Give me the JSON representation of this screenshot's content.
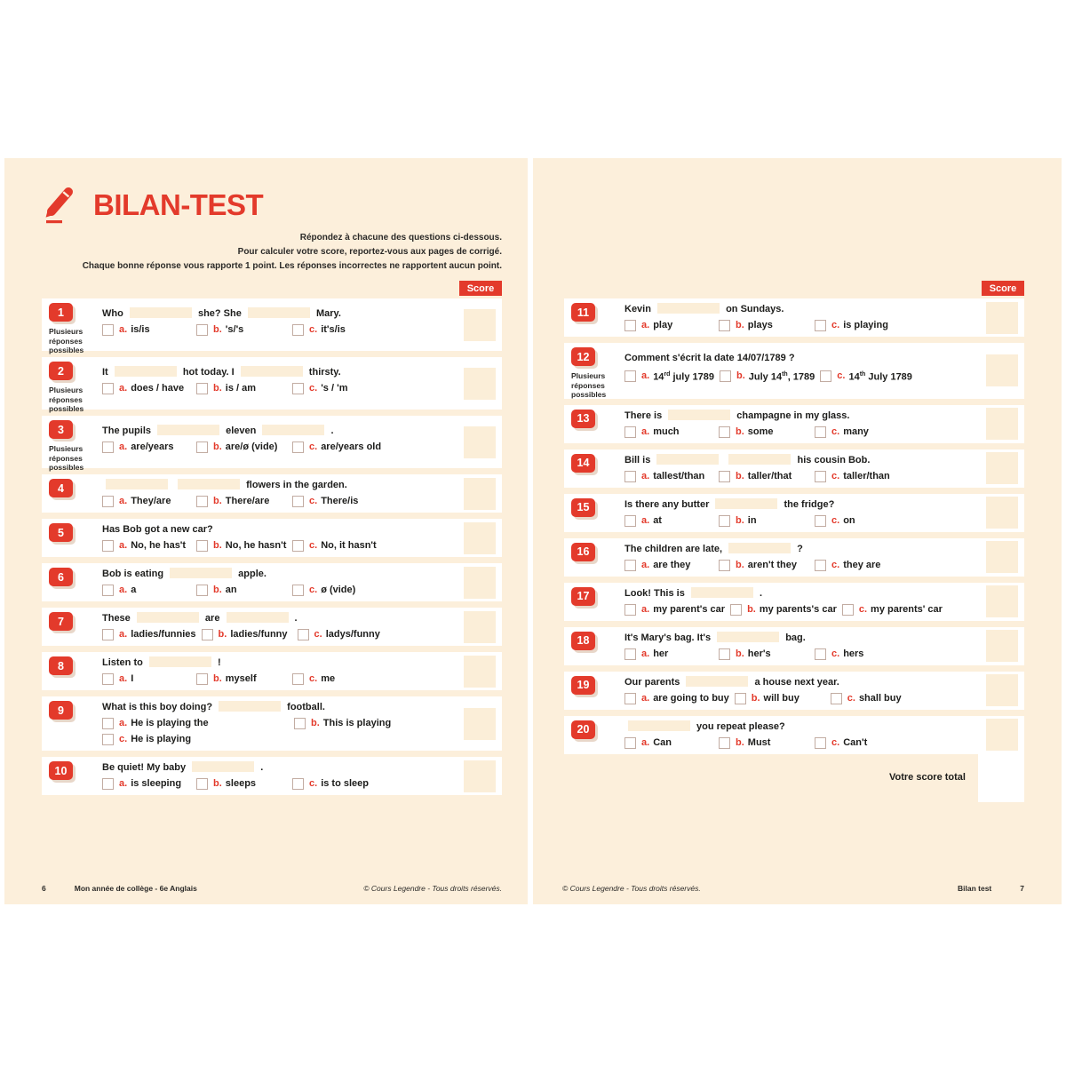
{
  "page_left": {
    "header": {
      "title": "BILAN-TEST"
    },
    "instructions": [
      "Répondez à chacune des questions ci-dessous.",
      "Pour calculer votre score, reportez-vous aux pages de corrigé.",
      "Chaque bonne réponse vous rapporte 1 point. Les réponses incorrectes ne rapportent aucun point."
    ],
    "score_label": "Score",
    "footer": {
      "page_number": "6",
      "book_title": "Mon année de collège - 6e Anglais",
      "copyright": "© Cours Legendre - Tous droits réservés."
    }
  },
  "page_right": {
    "score_label": "Score",
    "total_label": "Votre score total",
    "footer": {
      "copyright": "© Cours Legendre - Tous droits réservés.",
      "section": "Bilan test",
      "page_number": "7"
    }
  },
  "multi_answer_label": "Plusieurs réponses possibles",
  "colors": {
    "accent_red": "#e33a2b",
    "panel_cream": "#fcefdb",
    "score_box_cream": "#fbeed8",
    "row_white": "#ffffff",
    "text_dark": "#1d1d1b"
  },
  "questions_left": [
    {
      "number": "1",
      "multi": true,
      "prompt": "Who ___ she? She ___ Mary.",
      "options": [
        {
          "letter": "a.",
          "text": "is/is"
        },
        {
          "letter": "b.",
          "text": "'s/'s"
        },
        {
          "letter": "c.",
          "text": "it's/is"
        }
      ]
    },
    {
      "number": "2",
      "multi": true,
      "prompt": "It ___ hot today. I ___ thirsty.",
      "options": [
        {
          "letter": "a.",
          "text": "does / have"
        },
        {
          "letter": "b.",
          "text": "is / am"
        },
        {
          "letter": "c.",
          "text": "'s / 'm"
        }
      ]
    },
    {
      "number": "3",
      "multi": true,
      "prompt": "The pupils ___ eleven ___ .",
      "options": [
        {
          "letter": "a.",
          "text": "are/years"
        },
        {
          "letter": "b.",
          "text": "are/ø (vide)"
        },
        {
          "letter": "c.",
          "text": "are/years old"
        }
      ]
    },
    {
      "number": "4",
      "multi": false,
      "prompt": "___ ___ flowers in the garden.",
      "options": [
        {
          "letter": "a.",
          "text": "They/are"
        },
        {
          "letter": "b.",
          "text": "There/are"
        },
        {
          "letter": "c.",
          "text": "There/is"
        }
      ]
    },
    {
      "number": "5",
      "multi": false,
      "prompt": "Has Bob got a new car?",
      "options": [
        {
          "letter": "a.",
          "text": "No, he has't"
        },
        {
          "letter": "b.",
          "text": "No, he hasn't"
        },
        {
          "letter": "c.",
          "text": "No, it hasn't"
        }
      ]
    },
    {
      "number": "6",
      "multi": false,
      "prompt": "Bob is eating ___ apple.",
      "options": [
        {
          "letter": "a.",
          "text": "a"
        },
        {
          "letter": "b.",
          "text": "an"
        },
        {
          "letter": "c.",
          "text": "ø (vide)"
        }
      ]
    },
    {
      "number": "7",
      "multi": false,
      "prompt": "These ___ are ___ .",
      "options": [
        {
          "letter": "a.",
          "text": "ladies/funnies"
        },
        {
          "letter": "b.",
          "text": "ladies/funny"
        },
        {
          "letter": "c.",
          "text": "ladys/funny"
        }
      ]
    },
    {
      "number": "8",
      "multi": false,
      "prompt": "Listen to ___ !",
      "options": [
        {
          "letter": "a.",
          "text": "I"
        },
        {
          "letter": "b.",
          "text": "myself"
        },
        {
          "letter": "c.",
          "text": "me"
        }
      ]
    },
    {
      "number": "9",
      "multi": false,
      "prompt": "What is this boy doing? ___ football.",
      "layout_rows": [
        2,
        1
      ],
      "options": [
        {
          "letter": "a.",
          "text": "He is playing the"
        },
        {
          "letter": "b.",
          "text": "This is playing"
        },
        {
          "letter": "c.",
          "text": "He is playing"
        }
      ]
    },
    {
      "number": "10",
      "multi": false,
      "prompt": "Be quiet! My baby ___ .",
      "options": [
        {
          "letter": "a.",
          "text": "is sleeping"
        },
        {
          "letter": "b.",
          "text": "sleeps"
        },
        {
          "letter": "c.",
          "text": "is to sleep"
        }
      ]
    }
  ],
  "questions_right": [
    {
      "number": "11",
      "multi": false,
      "prompt": "Kevin ___ on Sundays.",
      "options": [
        {
          "letter": "a.",
          "text": "play"
        },
        {
          "letter": "b.",
          "text": "plays"
        },
        {
          "letter": "c.",
          "text": "is playing"
        }
      ]
    },
    {
      "number": "12",
      "multi": true,
      "prompt": "Comment s'écrit la date 14/07/1789 ?",
      "options": [
        {
          "letter": "a.",
          "text": "14|rd| july 1789"
        },
        {
          "letter": "b.",
          "text": "July 14|th|, 1789"
        },
        {
          "letter": "c.",
          "text": "14|th| July 1789"
        }
      ]
    },
    {
      "number": "13",
      "multi": false,
      "prompt": "There is ___ champagne in my glass.",
      "options": [
        {
          "letter": "a.",
          "text": "much"
        },
        {
          "letter": "b.",
          "text": "some"
        },
        {
          "letter": "c.",
          "text": "many"
        }
      ]
    },
    {
      "number": "14",
      "multi": false,
      "prompt": "Bill is ___ ___ his cousin Bob.",
      "options": [
        {
          "letter": "a.",
          "text": "tallest/than"
        },
        {
          "letter": "b.",
          "text": "taller/that"
        },
        {
          "letter": "c.",
          "text": "taller/than"
        }
      ]
    },
    {
      "number": "15",
      "multi": false,
      "prompt": "Is there any butter ___ the fridge?",
      "options": [
        {
          "letter": "a.",
          "text": "at"
        },
        {
          "letter": "b.",
          "text": "in"
        },
        {
          "letter": "c.",
          "text": "on"
        }
      ]
    },
    {
      "number": "16",
      "multi": false,
      "prompt": "The children are late, ___ ?",
      "options": [
        {
          "letter": "a.",
          "text": "are they"
        },
        {
          "letter": "b.",
          "text": "aren't they"
        },
        {
          "letter": "c.",
          "text": "they are"
        }
      ]
    },
    {
      "number": "17",
      "multi": false,
      "prompt": "Look! This is ___ .",
      "options": [
        {
          "letter": "a.",
          "text": "my parent's car"
        },
        {
          "letter": "b.",
          "text": "my parents's car"
        },
        {
          "letter": "c.",
          "text": "my parents' car"
        }
      ]
    },
    {
      "number": "18",
      "multi": false,
      "prompt": "It's Mary's bag. It's ___ bag.",
      "options": [
        {
          "letter": "a.",
          "text": "her"
        },
        {
          "letter": "b.",
          "text": "her's"
        },
        {
          "letter": "c.",
          "text": "hers"
        }
      ]
    },
    {
      "number": "19",
      "multi": false,
      "prompt": "Our parents ___ a house next year.",
      "options": [
        {
          "letter": "a.",
          "text": "are going to buy"
        },
        {
          "letter": "b.",
          "text": "will buy"
        },
        {
          "letter": "c.",
          "text": "shall buy"
        }
      ]
    },
    {
      "number": "20",
      "multi": false,
      "prompt": "___ you repeat please?",
      "options": [
        {
          "letter": "a.",
          "text": "Can"
        },
        {
          "letter": "b.",
          "text": "Must"
        },
        {
          "letter": "c.",
          "text": "Can't"
        }
      ]
    }
  ]
}
